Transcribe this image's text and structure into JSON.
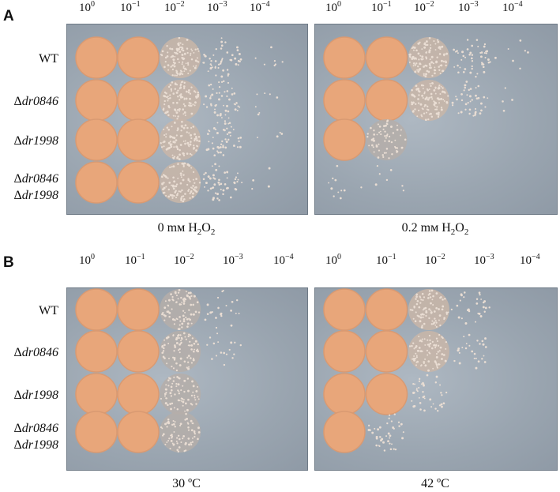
{
  "panels": [
    {
      "id": "A",
      "dilutions": [
        "0",
        "-1",
        "-2",
        "-3",
        "-4"
      ],
      "strains": [
        {
          "line1": "WT",
          "line2": ""
        },
        {
          "delta": "Δ",
          "line1": "dr0846",
          "line2": ""
        },
        {
          "delta": "Δ",
          "line1": "dr1998",
          "line2": ""
        },
        {
          "delta": "Δ",
          "line1": "dr0846",
          "delta2": "Δ",
          "line2": "dr1998"
        }
      ],
      "plates": [
        {
          "condition_prefix": "0 mм H",
          "sub": "2",
          "mid": "O",
          "sub2": "2",
          "growth": [
            [
              1,
              1,
              0.7,
              0.35,
              0.05
            ],
            [
              1,
              1,
              0.7,
              0.35,
              0.05
            ],
            [
              1,
              1,
              0.7,
              0.35,
              0.03
            ],
            [
              1,
              1,
              0.7,
              0.35,
              0.03
            ]
          ]
        },
        {
          "condition_prefix": "0.2 mм H",
          "sub": "2",
          "mid": "O",
          "sub2": "2",
          "growth": [
            [
              1,
              1,
              0.8,
              0.35,
              0.05
            ],
            [
              1,
              1,
              0.75,
              0.3,
              0.03
            ],
            [
              1,
              0.45,
              0,
              0,
              0
            ],
            [
              0.08,
              0.05,
              0,
              0,
              0
            ]
          ]
        }
      ]
    },
    {
      "id": "B",
      "dilutions": [
        "0",
        "-1",
        "-2",
        "-3",
        "-4"
      ],
      "strains": [
        {
          "line1": "WT",
          "line2": ""
        },
        {
          "delta": "Δ",
          "line1": "dr0846",
          "line2": ""
        },
        {
          "delta": "Δ",
          "line1": "dr1998",
          "line2": ""
        },
        {
          "delta": "Δ",
          "line1": "dr0846",
          "delta2": "Δ",
          "line2": "dr1998"
        }
      ],
      "plates": [
        {
          "condition": "30 ºC",
          "growth": [
            [
              1,
              1,
              0.55,
              0.15,
              0
            ],
            [
              1,
              1,
              0.55,
              0.12,
              0
            ],
            [
              1,
              1,
              0.5,
              0,
              0
            ],
            [
              1,
              1,
              0.5,
              0,
              0
            ]
          ]
        },
        {
          "condition": "42 ºC",
          "growth": [
            [
              1,
              1,
              0.6,
              0.2,
              0
            ],
            [
              1,
              1,
              0.6,
              0.2,
              0
            ],
            [
              1,
              1,
              0.3,
              0,
              0
            ],
            [
              1,
              0.3,
              0,
              0,
              0
            ]
          ]
        }
      ]
    }
  ],
  "colors": {
    "colony": "#e8a67a",
    "colony_edge": "#d99a72",
    "agar": "#9aa5b0",
    "speckle": "#e9ddd3"
  }
}
